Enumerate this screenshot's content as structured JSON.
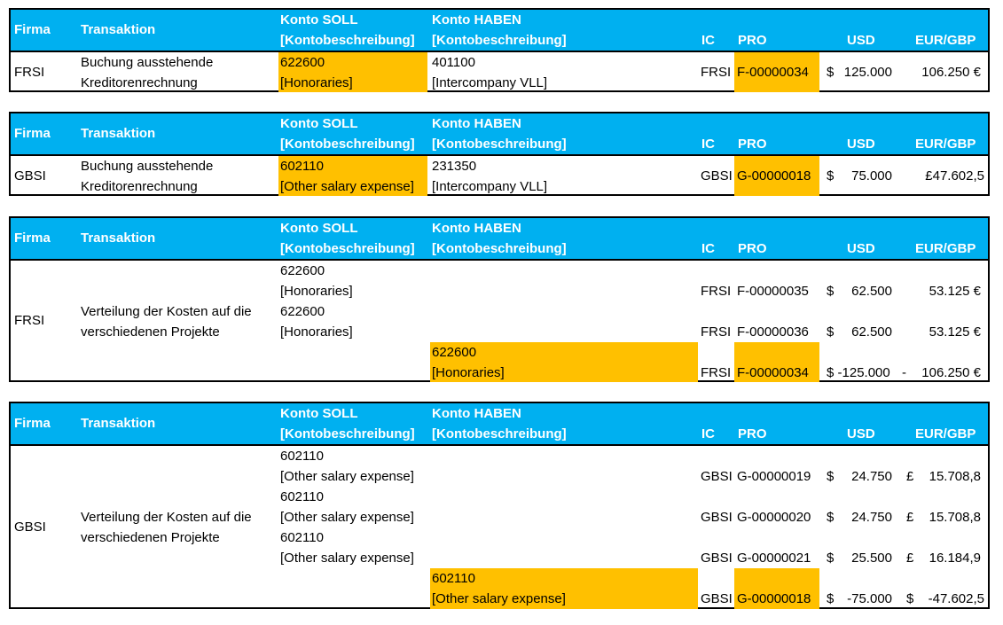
{
  "header": {
    "firma": "Firma",
    "transaktion": "Transaktion",
    "soll1": "Konto SOLL",
    "soll2": "[Kontobeschreibung]",
    "haben1": "Konto HABEN",
    "haben2": "[Kontobeschreibung]",
    "ic": "IC",
    "pro": "PRO",
    "usd": "USD",
    "eur": "EUR/GBP"
  },
  "t1": {
    "firma": "FRSI",
    "trans1": "Buchung ausstehende",
    "trans2": "Kreditorenrechnung",
    "soll_acct": "622600",
    "soll_desc": "[Honoraries]",
    "haben_acct": "401100",
    "haben_desc": "[Intercompany VLL]",
    "ic": "FRSI",
    "pro": "F-00000034",
    "usd_sym": "$",
    "usd": "125.000",
    "eur": "106.250 €"
  },
  "t2": {
    "firma": "GBSI",
    "trans1": "Buchung ausstehende",
    "trans2": "Kreditorenrechnung",
    "soll_acct": "602110",
    "soll_desc": "[Other salary expense]",
    "haben_acct": "231350",
    "haben_desc": "[Intercompany VLL]",
    "ic": "GBSI",
    "pro": "G-00000018",
    "usd_sym": "$",
    "usd": "75.000",
    "eur": "£47.602,5"
  },
  "t3": {
    "firma": "FRSI",
    "trans1": "Verteilung der Kosten auf die",
    "trans2": "verschiedenen Projekte",
    "r1_acct": "622600",
    "r1_desc": "[Honoraries]",
    "r1_ic": "FRSI",
    "r1_pro": "F-00000035",
    "r1_sym": "$",
    "r1_usd": "62.500",
    "r1_eur": "53.125 €",
    "r2_acct": "622600",
    "r2_desc": "[Honoraries]",
    "r2_ic": "FRSI",
    "r2_pro": "F-00000036",
    "r2_sym": "$",
    "r2_usd": "62.500",
    "r2_eur": "53.125 €",
    "r3_acct": "622600",
    "r3_desc": "[Honoraries]",
    "r3_ic": "FRSI",
    "r3_pro": "F-00000034",
    "r3_usd": "$ -125.000",
    "r3_dash": "-",
    "r3_eur": "106.250 €"
  },
  "t4": {
    "firma": "GBSI",
    "trans1": "Verteilung der Kosten auf die",
    "trans2": "verschiedenen Projekte",
    "r1_acct": "602110",
    "r1_desc": "[Other salary expense]",
    "r1_ic": "GBSI",
    "r1_pro": "G-00000019",
    "r1_sym": "$",
    "r1_usd": "24.750",
    "r1_gsym": "£",
    "r1_eur": "15.708,8",
    "r2_acct": "602110",
    "r2_desc": "[Other salary expense]",
    "r2_ic": "GBSI",
    "r2_pro": "G-00000020",
    "r2_sym": "$",
    "r2_usd": "24.750",
    "r2_gsym": "£",
    "r2_eur": "15.708,8",
    "r3_acct": "602110",
    "r3_desc": "[Other salary expense]",
    "r3_ic": "GBSI",
    "r3_pro": "G-00000021",
    "r3_sym": "$",
    "r3_usd": "25.500",
    "r3_gsym": "£",
    "r3_eur": "16.184,9",
    "r4_acct": "602110",
    "r4_desc": "[Other salary expense]",
    "r4_ic": "GBSI",
    "r4_pro": "G-00000018",
    "r4_sym": "$",
    "r4_usd": "-75.000",
    "r4_gsym": "$",
    "r4_eur": "-47.602,5"
  },
  "colors": {
    "header": "#00B0F0",
    "highlight": "#FFC000"
  }
}
